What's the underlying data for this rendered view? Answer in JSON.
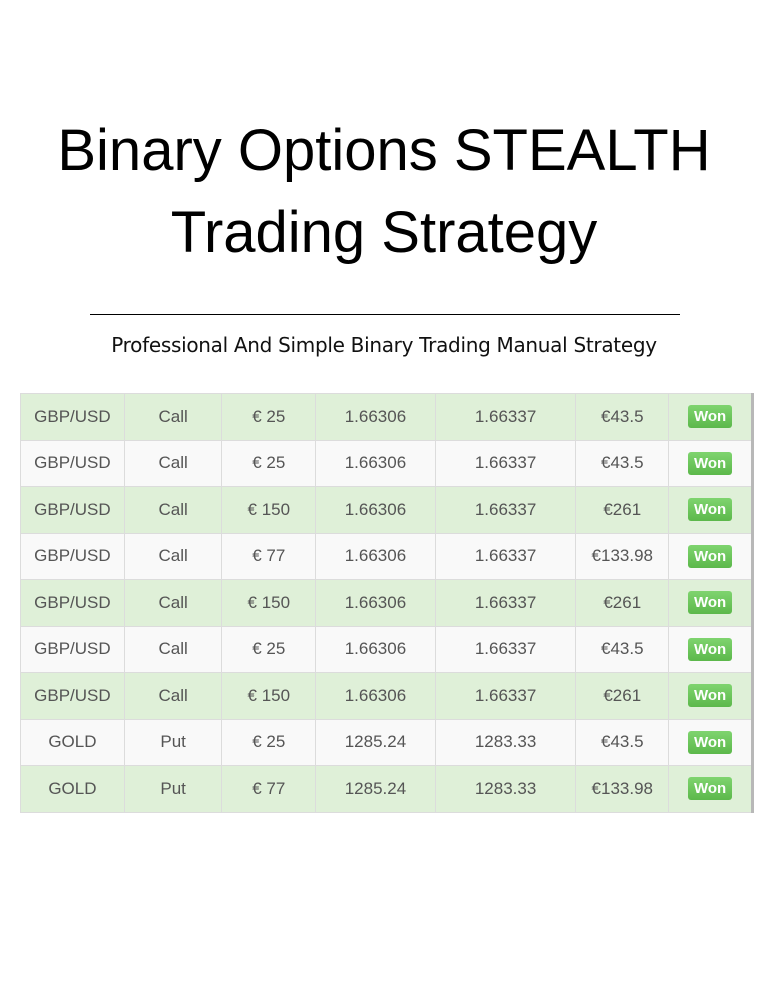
{
  "title_lines": [
    "Binary Options STEALTH",
    "Trading Strategy"
  ],
  "subtitle": "Professional And Simple Binary Trading Manual Strategy",
  "trades": [
    {
      "asset": "GBP/USD",
      "direction": "Call",
      "stake": "€ 25",
      "open": "1.66306",
      "close": "1.66337",
      "payout": "€43.5",
      "status": "Won"
    },
    {
      "asset": "GBP/USD",
      "direction": "Call",
      "stake": "€ 25",
      "open": "1.66306",
      "close": "1.66337",
      "payout": "€43.5",
      "status": "Won"
    },
    {
      "asset": "GBP/USD",
      "direction": "Call",
      "stake": "€ 150",
      "open": "1.66306",
      "close": "1.66337",
      "payout": "€261",
      "status": "Won"
    },
    {
      "asset": "GBP/USD",
      "direction": "Call",
      "stake": "€ 77",
      "open": "1.66306",
      "close": "1.66337",
      "payout": "€133.98",
      "status": "Won"
    },
    {
      "asset": "GBP/USD",
      "direction": "Call",
      "stake": "€ 150",
      "open": "1.66306",
      "close": "1.66337",
      "payout": "€261",
      "status": "Won"
    },
    {
      "asset": "GBP/USD",
      "direction": "Call",
      "stake": "€ 25",
      "open": "1.66306",
      "close": "1.66337",
      "payout": "€43.5",
      "status": "Won"
    },
    {
      "asset": "GBP/USD",
      "direction": "Call",
      "stake": "€ 150",
      "open": "1.66306",
      "close": "1.66337",
      "payout": "€261",
      "status": "Won"
    },
    {
      "asset": "GOLD",
      "direction": "Put",
      "stake": "€ 25",
      "open": "1285.24",
      "close": "1283.33",
      "payout": "€43.5",
      "status": "Won"
    },
    {
      "asset": "GOLD",
      "direction": "Put",
      "stake": "€ 77",
      "open": "1285.24",
      "close": "1283.33",
      "payout": "€133.98",
      "status": "Won"
    }
  ],
  "colors": {
    "row_green": "#dff0d8",
    "row_light": "#f9f9f9",
    "badge_green": "#5cb84b"
  }
}
